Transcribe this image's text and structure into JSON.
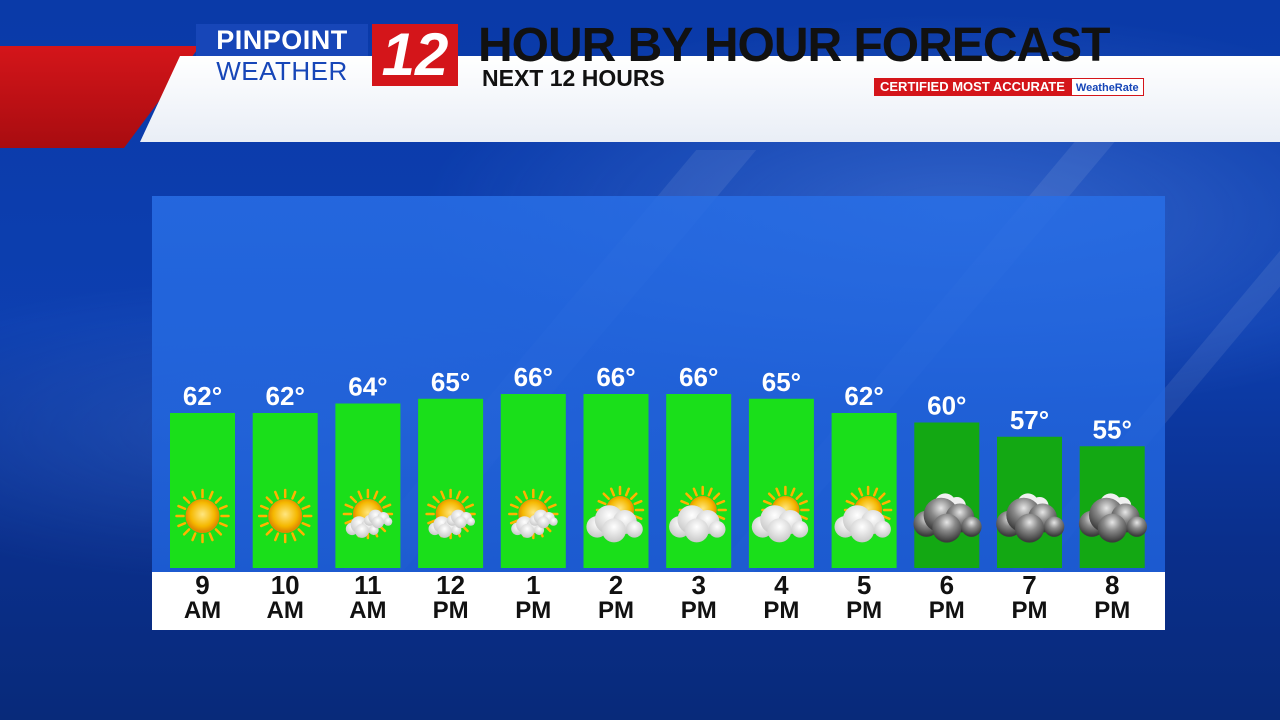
{
  "header": {
    "logo_pinpoint": "PINPOINT",
    "logo_weather": "WEATHER",
    "logo_channel": "12",
    "title": "HOUR BY HOUR FORECAST",
    "subtitle": "NEXT 12 HOURS",
    "certified_text": "CERTIFIED MOST ACCURATE",
    "certified_brand": "WeatheRate"
  },
  "colors": {
    "bar_day": "#1adf1a",
    "bar_evening": "#13a813",
    "accent_red": "#d4151a",
    "brand_blue": "#1746b8"
  },
  "chart_data": {
    "type": "bar",
    "title": "HOUR BY HOUR FORECAST",
    "subtitle": "NEXT 12 HOURS",
    "unit": "°",
    "categories": [
      {
        "hour": "9",
        "ampm": "AM"
      },
      {
        "hour": "10",
        "ampm": "AM"
      },
      {
        "hour": "11",
        "ampm": "AM"
      },
      {
        "hour": "12",
        "ampm": "PM"
      },
      {
        "hour": "1",
        "ampm": "PM"
      },
      {
        "hour": "2",
        "ampm": "PM"
      },
      {
        "hour": "3",
        "ampm": "PM"
      },
      {
        "hour": "4",
        "ampm": "PM"
      },
      {
        "hour": "5",
        "ampm": "PM"
      },
      {
        "hour": "6",
        "ampm": "PM"
      },
      {
        "hour": "7",
        "ampm": "PM"
      },
      {
        "hour": "8",
        "ampm": "PM"
      }
    ],
    "values": [
      62,
      62,
      64,
      65,
      66,
      66,
      66,
      65,
      62,
      60,
      57,
      55
    ],
    "labels": [
      "62°",
      "62°",
      "64°",
      "65°",
      "66°",
      "66°",
      "66°",
      "65°",
      "62°",
      "60°",
      "57°",
      "55°"
    ],
    "conditions": [
      "sunny",
      "sunny",
      "mostly-sunny",
      "mostly-sunny",
      "mostly-sunny",
      "partly-cloudy",
      "partly-cloudy",
      "partly-cloudy",
      "partly-cloudy",
      "night-cloudy",
      "night-cloudy",
      "night-cloudy"
    ],
    "evening_from_index": 9,
    "ylim": [
      0,
      66
    ]
  }
}
